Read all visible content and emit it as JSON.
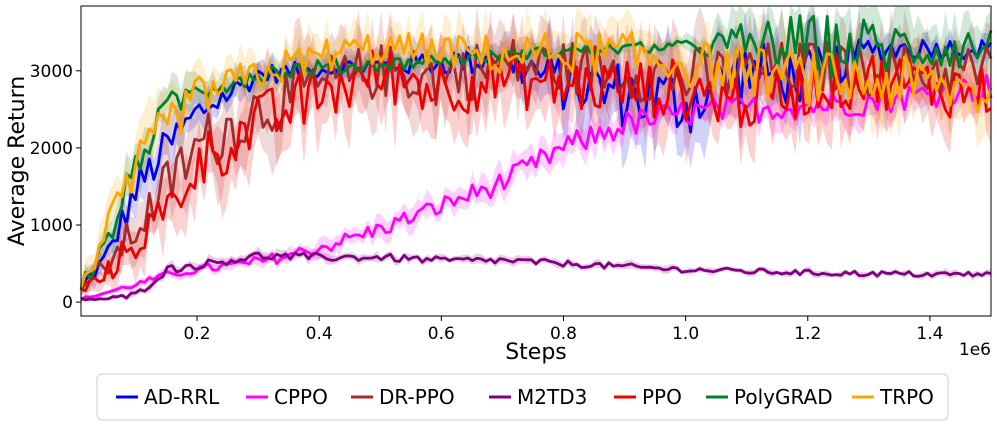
{
  "chart_data": {
    "type": "line",
    "title": "",
    "xlabel": "Steps",
    "ylabel": "Average Return",
    "x_offset_label": "1e6",
    "xlim": [
      0.01,
      1.5
    ],
    "ylim": [
      -180,
      3840
    ],
    "xticks": [
      0.2,
      0.4,
      0.6,
      0.8,
      1.0,
      1.2,
      1.4
    ],
    "xtick_labels": [
      "0.2",
      "0.4",
      "0.6",
      "0.8",
      "1.0",
      "1.2",
      "1.4"
    ],
    "yticks": [
      0,
      1000,
      2000,
      3000
    ],
    "ytick_labels": [
      "0",
      "1000",
      "2000",
      "3000"
    ],
    "grid": false,
    "legend_position": "bottom",
    "x": [
      0.01,
      0.05,
      0.1,
      0.15,
      0.2,
      0.3,
      0.4,
      0.5,
      0.6,
      0.7,
      0.8,
      0.9,
      1.0,
      1.1,
      1.2,
      1.3,
      1.4,
      1.5
    ],
    "series": [
      {
        "name": "AD-RRL",
        "color": "#0000ee",
        "values": [
          200,
          550,
          1450,
          2000,
          2450,
          2950,
          3020,
          3070,
          3120,
          3150,
          2850,
          2700,
          2600,
          3000,
          2900,
          3280,
          3300,
          3280
        ],
        "spread": [
          80,
          160,
          280,
          300,
          250,
          150,
          120,
          160,
          200,
          250,
          420,
          500,
          550,
          450,
          420,
          200,
          150,
          150
        ]
      },
      {
        "name": "CPPO",
        "color": "#ff00ff",
        "values": [
          40,
          120,
          230,
          350,
          420,
          520,
          700,
          950,
          1250,
          1550,
          2000,
          2300,
          2450,
          2500,
          2550,
          2600,
          2700,
          2800
        ],
        "spread": [
          20,
          30,
          40,
          50,
          60,
          80,
          100,
          120,
          140,
          160,
          180,
          200,
          200,
          200,
          200,
          200,
          200,
          200
        ]
      },
      {
        "name": "DR-PPO",
        "color": "#a52a2a",
        "values": [
          200,
          450,
          950,
          1500,
          2000,
          2500,
          2800,
          3000,
          2900,
          3100,
          3050,
          3000,
          2900,
          3000,
          3050,
          3000,
          3000,
          3000
        ],
        "spread": [
          90,
          180,
          300,
          400,
          450,
          450,
          450,
          400,
          450,
          400,
          400,
          400,
          450,
          400,
          400,
          400,
          400,
          400
        ]
      },
      {
        "name": "M2TD3",
        "color": "#800080",
        "values": [
          40,
          40,
          90,
          420,
          480,
          600,
          580,
          580,
          540,
          540,
          500,
          460,
          420,
          400,
          380,
          370,
          360,
          360
        ],
        "spread": [
          20,
          20,
          50,
          60,
          60,
          60,
          55,
          55,
          50,
          50,
          45,
          45,
          40,
          40,
          40,
          40,
          40,
          40
        ]
      },
      {
        "name": "PPO",
        "color": "#ee0000",
        "values": [
          150,
          350,
          800,
          1150,
          1800,
          2300,
          2700,
          2950,
          2800,
          2900,
          2800,
          2800,
          2750,
          2600,
          2800,
          2900,
          2800,
          2700
        ],
        "spread": [
          80,
          160,
          280,
          380,
          420,
          450,
          450,
          420,
          450,
          420,
          420,
          430,
          450,
          450,
          430,
          420,
          420,
          420
        ]
      },
      {
        "name": "PolyGRAD",
        "color": "#00802b",
        "values": [
          230,
          700,
          1800,
          2500,
          2760,
          2960,
          3040,
          3080,
          3140,
          3200,
          3260,
          3290,
          3320,
          3340,
          3340,
          3300,
          3300,
          3300
        ],
        "spread": [
          100,
          200,
          250,
          220,
          180,
          150,
          120,
          100,
          90,
          80,
          80,
          80,
          80,
          350,
          450,
          450,
          350,
          300
        ]
      },
      {
        "name": "TRPO",
        "color": "#ffa500",
        "values": [
          250,
          850,
          1700,
          2300,
          2650,
          2950,
          3200,
          3300,
          3250,
          3200,
          3250,
          3200,
          3100,
          3000,
          2900,
          2850,
          2800,
          2700
        ],
        "spread": [
          120,
          250,
          350,
          350,
          300,
          250,
          250,
          250,
          250,
          300,
          300,
          350,
          350,
          350,
          400,
          400,
          400,
          400
        ]
      }
    ]
  }
}
